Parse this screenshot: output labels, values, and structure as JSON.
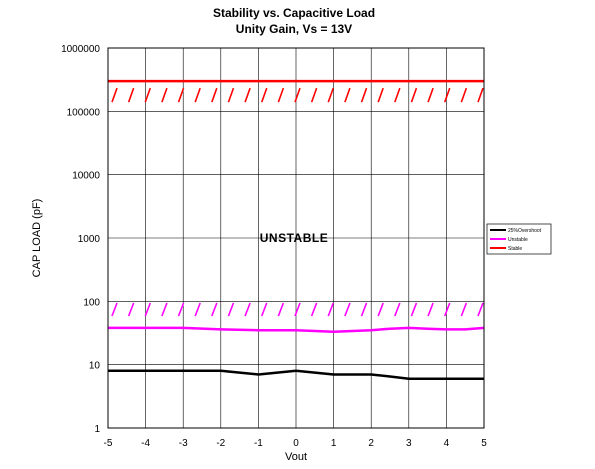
{
  "chart_data": {
    "type": "line",
    "title": "Stability vs. Capacitive Load",
    "subtitle": "Unity Gain, Vs = 13V",
    "xlabel": "Vout",
    "ylabel": "CAP LOAD (pF)",
    "xlim": [
      -5,
      5
    ],
    "ylim": [
      1,
      1000000
    ],
    "yscale": "log",
    "grid": true,
    "x_ticks": [
      "-5",
      "-4",
      "-3",
      "-2",
      "-1",
      "0",
      "1",
      "2",
      "3",
      "4",
      "5"
    ],
    "y_ticks": [
      "1",
      "10",
      "100",
      "1000",
      "10000",
      "100000",
      "1000000"
    ],
    "legend_position": "right",
    "annotation": "UNSTABLE",
    "series": [
      {
        "name": "25%Overshoot",
        "color": "#000000",
        "x": [
          -5,
          -4,
          -3,
          -2,
          -1.5,
          -1,
          -0.5,
          0,
          0.5,
          1,
          2,
          2.5,
          3,
          4,
          5
        ],
        "y": [
          8,
          8,
          8,
          8,
          7.5,
          7,
          7.5,
          8,
          7.5,
          7,
          7,
          6.5,
          6,
          6,
          6
        ]
      },
      {
        "name": "Unstable",
        "color": "#ff00ff",
        "x": [
          -5,
          -4,
          -3,
          -2,
          -1,
          0,
          1,
          2,
          2.5,
          3,
          3.5,
          4,
          4.5,
          5
        ],
        "y": [
          38,
          38,
          38,
          36,
          35,
          35,
          33,
          35,
          37,
          38,
          37,
          36,
          36,
          38
        ]
      },
      {
        "name": "Stable",
        "color": "#ff0000",
        "x": [
          -5,
          5
        ],
        "y": [
          300000,
          300000
        ]
      }
    ]
  }
}
